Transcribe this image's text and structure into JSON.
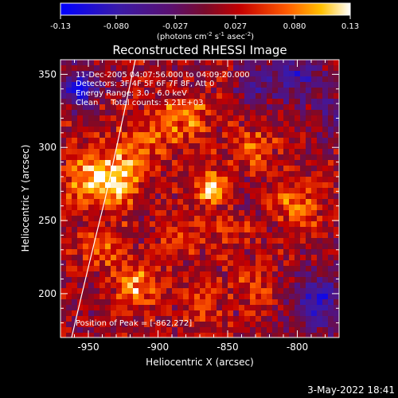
{
  "title": "Reconstructed RHESSI Image",
  "colorbar": {
    "ticks": [
      "-0.13",
      "-0.080",
      "-0.027",
      "0.027",
      "0.080",
      "0.13"
    ],
    "tick_values": [
      -0.13,
      -0.08,
      -0.027,
      0.027,
      0.08,
      0.13
    ],
    "range": [
      -0.13,
      0.13
    ],
    "unit_base": "(photons cm",
    "unit_exp1": "-2",
    "unit_mid": " s",
    "unit_exp2": "-1",
    "unit_mid2": " asec",
    "unit_exp3": "-2",
    "unit_end": ")"
  },
  "annotations": {
    "time": "11-Dec-2005 04:07:56.000 to 04:09:20.000",
    "detectors": "Detectors: 3F 4F 5F 6F 7F 8F, Att 0",
    "energy": "Energy Range: 3.0 - 6.0 keV",
    "clean": "Clean     Total counts: 5.21E+03",
    "peak": "Position of Peak = [-862,272]"
  },
  "footer": {
    "timestamp": "3-May-2022 18:41"
  },
  "chart_data": {
    "type": "heatmap",
    "title": "Reconstructed RHESSI Image",
    "xlabel": "Heliocentric X (arcsec)",
    "ylabel": "Heliocentric Y (arcsec)",
    "xlim": [
      -970,
      -770
    ],
    "ylim": [
      170,
      360
    ],
    "xticks": [
      -950,
      -900,
      -850,
      -800
    ],
    "yticks": [
      200,
      250,
      300,
      350
    ],
    "xtick_labels": [
      "-950",
      "-900",
      "-850",
      "-800"
    ],
    "ytick_labels": [
      "200",
      "250",
      "300",
      "350"
    ],
    "peak": {
      "x": -862,
      "y": 272
    },
    "colormap": "blue-purple-red-yellow-white",
    "blobs": [
      {
        "x": -862,
        "y": 272,
        "value": 0.13,
        "spread": 7
      },
      {
        "x": -948,
        "y": 280,
        "value": 0.085,
        "spread": 14
      },
      {
        "x": -928,
        "y": 275,
        "value": 0.075,
        "spread": 11
      },
      {
        "x": -915,
        "y": 205,
        "value": 0.08,
        "spread": 10
      },
      {
        "x": -882,
        "y": 320,
        "value": 0.06,
        "spread": 14
      },
      {
        "x": -915,
        "y": 300,
        "value": 0.05,
        "spread": 14
      },
      {
        "x": -800,
        "y": 262,
        "value": 0.06,
        "spread": 12
      },
      {
        "x": -830,
        "y": 300,
        "value": 0.045,
        "spread": 12
      },
      {
        "x": -850,
        "y": 240,
        "value": 0.04,
        "spread": 10
      },
      {
        "x": -885,
        "y": 245,
        "value": 0.045,
        "spread": 10
      },
      {
        "x": -940,
        "y": 230,
        "value": 0.05,
        "spread": 12
      },
      {
        "x": -830,
        "y": 205,
        "value": 0.04,
        "spread": 10
      },
      {
        "x": -870,
        "y": 195,
        "value": 0.035,
        "spread": 12
      },
      {
        "x": -955,
        "y": 340,
        "value": -0.11,
        "spread": 9
      },
      {
        "x": -800,
        "y": 350,
        "value": -0.07,
        "spread": 14
      },
      {
        "x": -785,
        "y": 195,
        "value": -0.09,
        "spread": 14
      },
      {
        "x": -830,
        "y": 345,
        "value": -0.05,
        "spread": 12
      },
      {
        "x": -770,
        "y": 320,
        "value": -0.05,
        "spread": 12
      }
    ]
  }
}
